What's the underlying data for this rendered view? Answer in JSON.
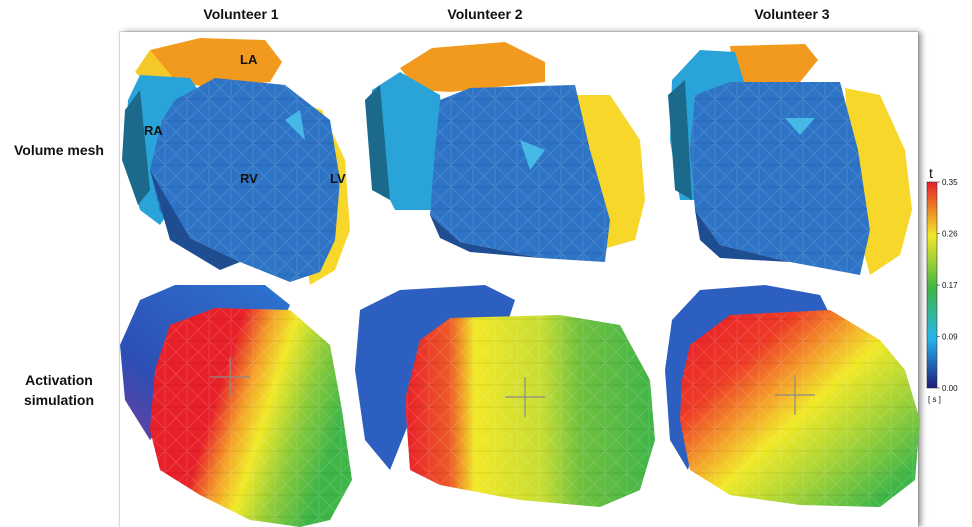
{
  "columns": [
    {
      "label": "Volunteer 1"
    },
    {
      "label": "Volunteer 2"
    },
    {
      "label": "Volunteer 3"
    }
  ],
  "rows": [
    {
      "label_line1": "Volume mesh",
      "label_line2": ""
    },
    {
      "label_line1": "Activation",
      "label_line2": "simulation"
    }
  ],
  "chamber_labels": {
    "la": "LA",
    "ra": "RA",
    "rv": "RV",
    "lv": "LV"
  },
  "colorbar": {
    "title": "t",
    "unit": "[ s ]",
    "ticks": [
      "0.35",
      "0.26",
      "0.17",
      "0.09",
      "0.00"
    ],
    "stops": [
      "#e8202a",
      "#f1e927",
      "#3fb548",
      "#27b5ea",
      "#1d1b7c"
    ]
  },
  "mesh_colors": {
    "LA": "#f29a1e",
    "RA": "#2aa4d8",
    "RV": "#2d73c6",
    "LV": "#f6d72a"
  }
}
